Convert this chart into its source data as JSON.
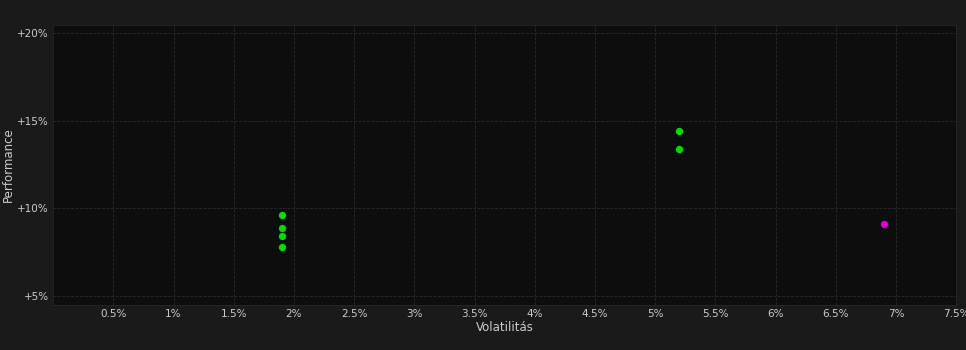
{
  "background_color": "#1a1a1a",
  "plot_bg_color": "#0d0d0d",
  "grid_color": "#2a2a2a",
  "text_color": "#cccccc",
  "xlabel": "Volatilitás",
  "ylabel": "Performance",
  "xlim": [
    0.0,
    0.075
  ],
  "ylim": [
    0.045,
    0.205
  ],
  "xticks": [
    0.005,
    0.01,
    0.015,
    0.02,
    0.025,
    0.03,
    0.035,
    0.04,
    0.045,
    0.05,
    0.055,
    0.06,
    0.065,
    0.07,
    0.075
  ],
  "yticks": [
    0.05,
    0.1,
    0.15,
    0.2
  ],
  "xtick_labels": [
    "0.5%",
    "1%",
    "1.5%",
    "2%",
    "2.5%",
    "3%",
    "3.5%",
    "4%",
    "4.5%",
    "5%",
    "5.5%",
    "6%",
    "6.5%",
    "7%",
    "7.5%"
  ],
  "ytick_labels": [
    "+5%",
    "+10%",
    "+15%",
    "+20%"
  ],
  "green_points": [
    [
      0.019,
      0.096
    ],
    [
      0.019,
      0.089
    ],
    [
      0.019,
      0.084
    ],
    [
      0.019,
      0.078
    ],
    [
      0.052,
      0.144
    ],
    [
      0.052,
      0.134
    ]
  ],
  "magenta_points": [
    [
      0.069,
      0.091
    ]
  ],
  "green_color": "#00dd00",
  "magenta_color": "#dd00dd",
  "marker_size": 28
}
